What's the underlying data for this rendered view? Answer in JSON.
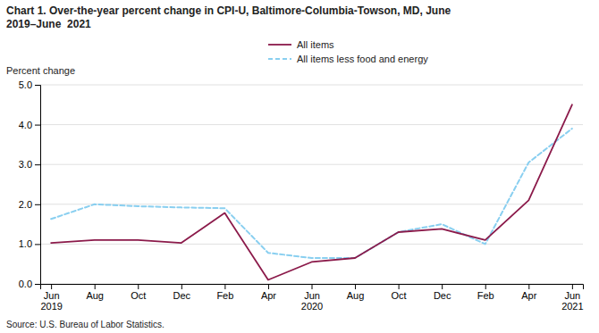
{
  "chart_data": {
    "type": "line",
    "title": "Chart 1. Over-the-year percent change in CPI-U, Baltimore-Columbia-Towson, MD, June\n2019–June  2021",
    "ylabel": "Percent change",
    "source": "Source: U.S. Bureau of Labor Statistics.",
    "categories": [
      "Jun\n2019",
      "Aug",
      "Oct",
      "Dec",
      "Feb",
      "Apr",
      "Jun\n2020",
      "Aug",
      "Oct",
      "Dec",
      "Feb",
      "Apr",
      "Jun\n2021"
    ],
    "series": [
      {
        "name": "All items",
        "color": "#8B1A4A",
        "line_style": "solid",
        "values": [
          1.03,
          1.1,
          1.1,
          1.03,
          1.78,
          0.1,
          0.55,
          0.65,
          1.3,
          1.38,
          1.1,
          2.1,
          4.5
        ]
      },
      {
        "name": "All items less food and energy",
        "color": "#89CFF0",
        "line_style": "dashed",
        "values": [
          1.63,
          2.0,
          1.95,
          1.92,
          1.9,
          0.78,
          0.65,
          0.65,
          1.3,
          1.5,
          1.0,
          3.05,
          3.9
        ]
      }
    ],
    "ylim": [
      0.0,
      5.0
    ],
    "yticks": [
      {
        "value": 0.0,
        "label": "0.0"
      },
      {
        "value": 1.0,
        "label": "1.0"
      },
      {
        "value": 2.0,
        "label": "2.0"
      },
      {
        "value": 3.0,
        "label": "3.0"
      },
      {
        "value": 4.0,
        "label": "4.0"
      },
      {
        "value": 5.0,
        "label": "5.0"
      }
    ],
    "grid": true,
    "legend": "top"
  }
}
